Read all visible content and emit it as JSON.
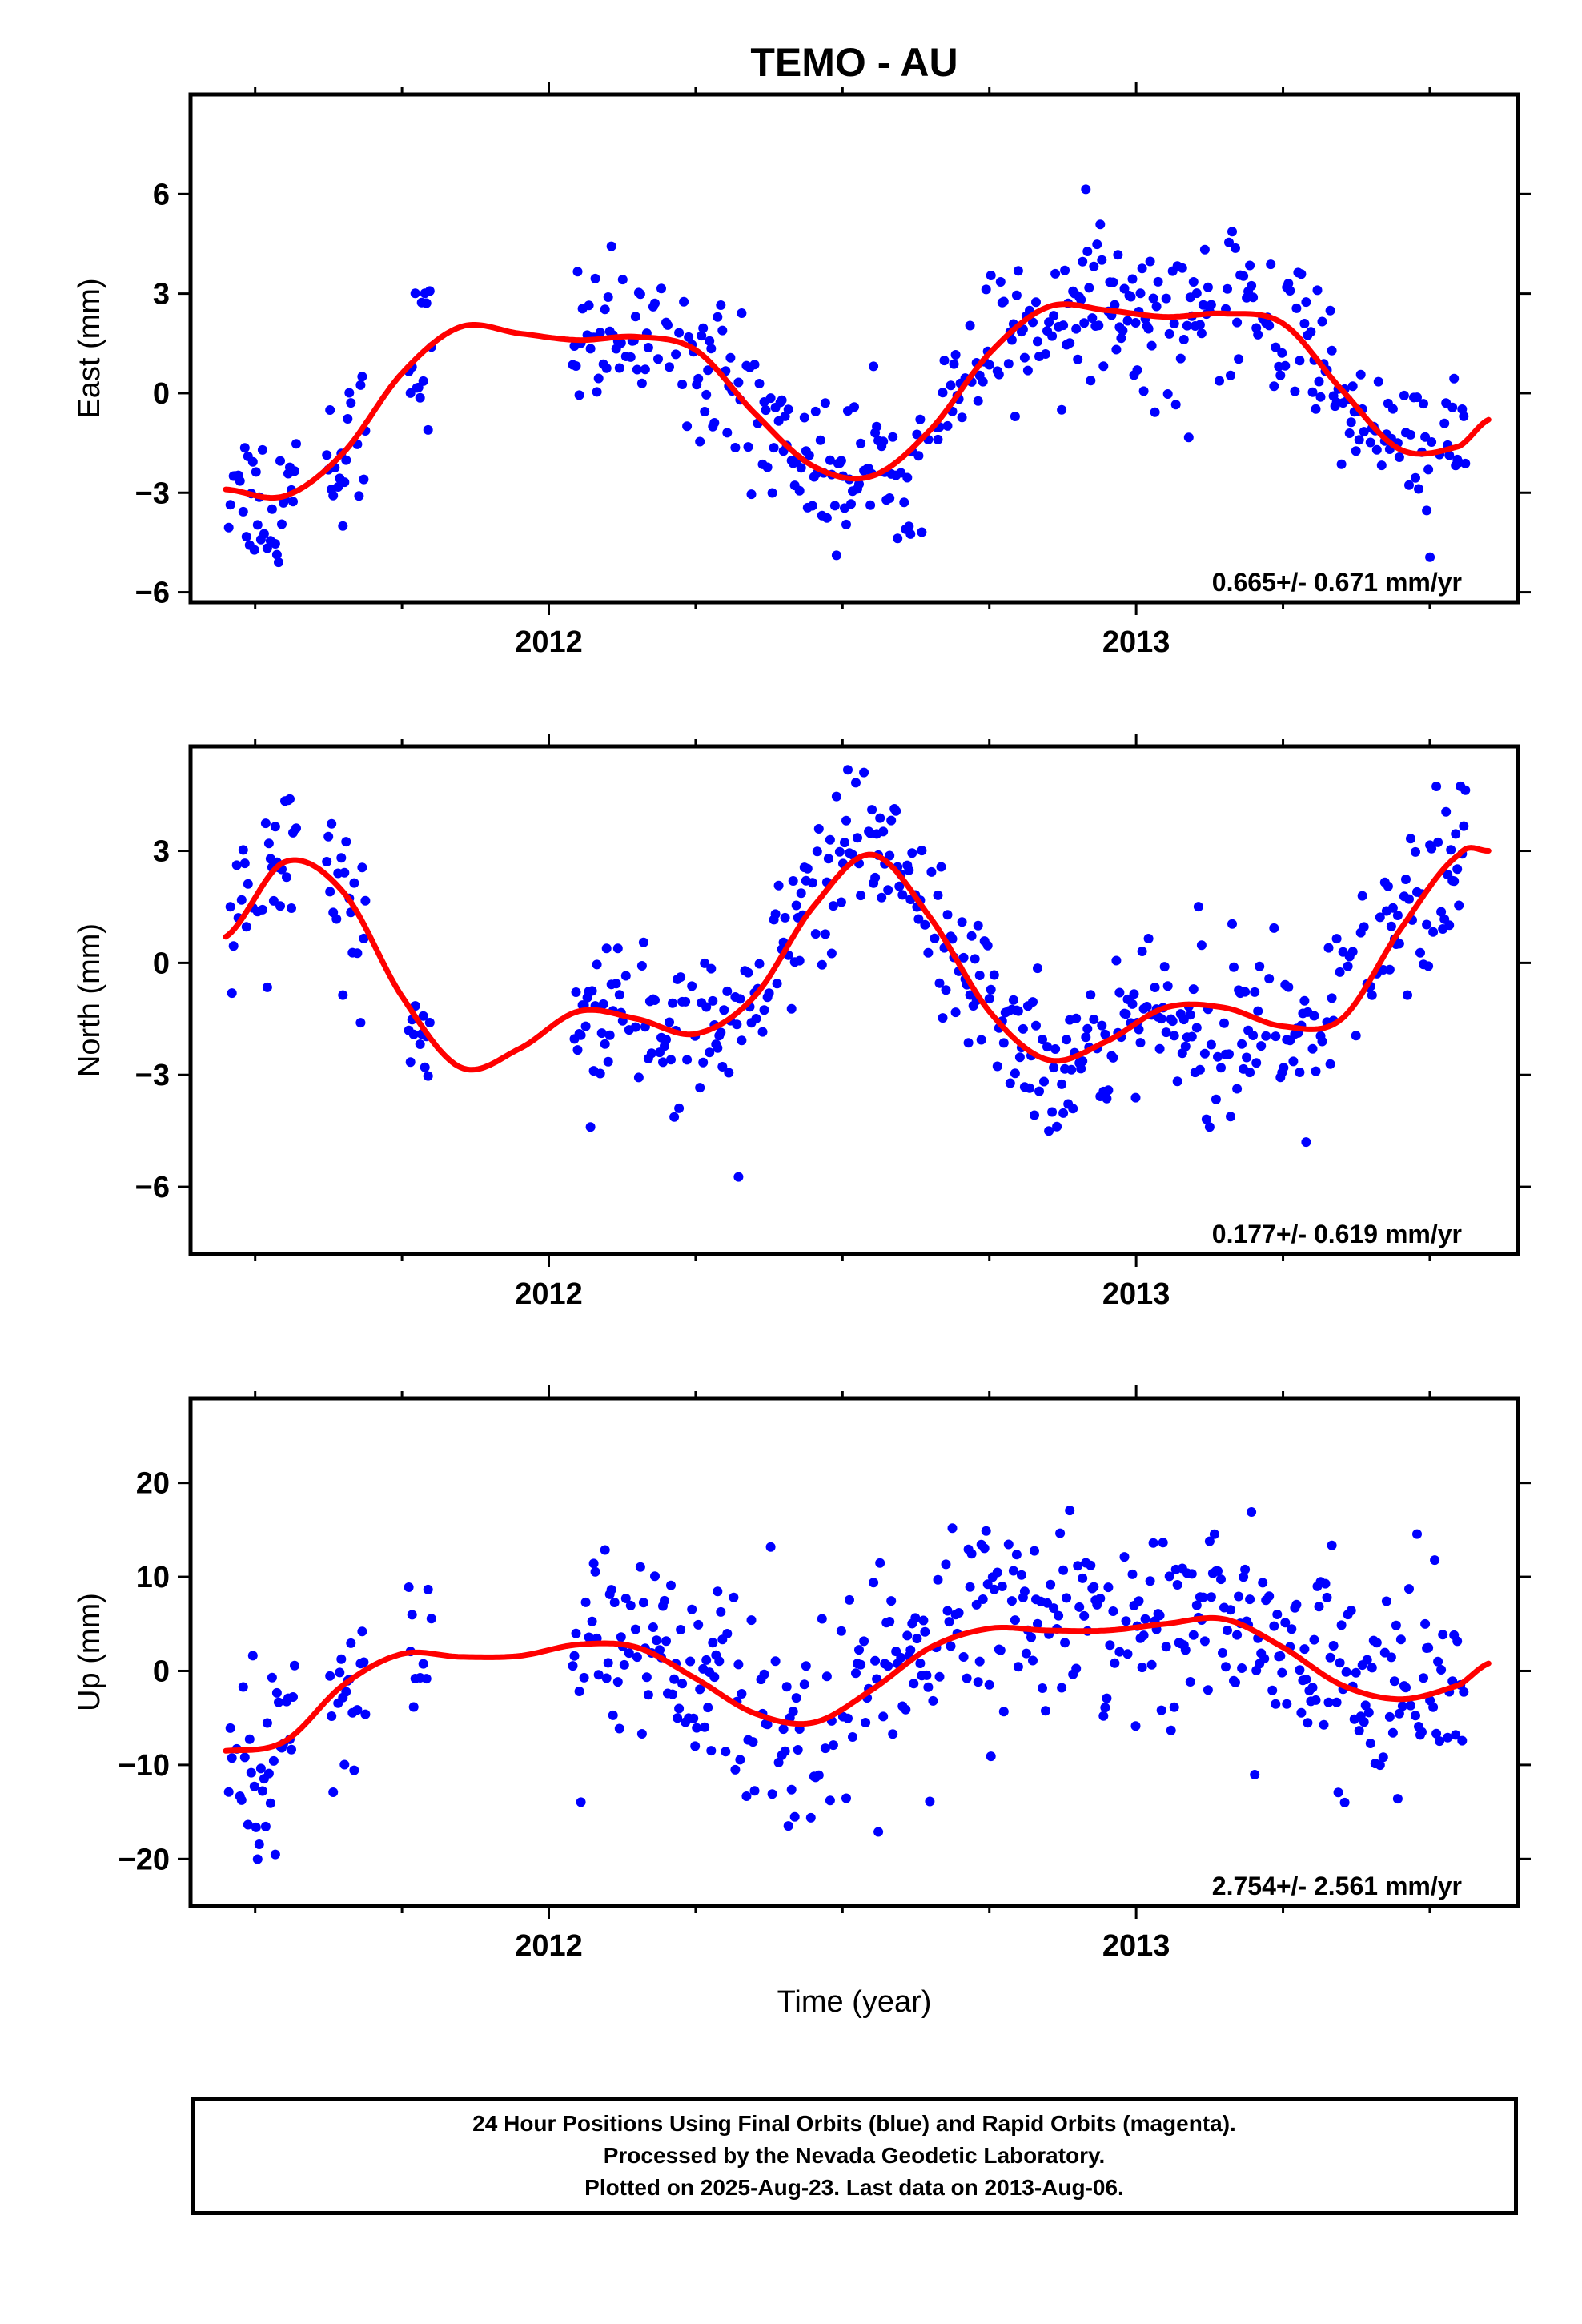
{
  "title": "TEMO - AU",
  "colors": {
    "points": "#0000ff",
    "fit": "#ff0000",
    "frame": "#000000"
  },
  "footer": {
    "line1": "24 Hour Positions Using Final Orbits (blue) and Rapid Orbits (magenta).",
    "line2": "Processed by the Nevada Geodetic Laboratory.",
    "line3": "Plotted on 2025-Aug-23. Last data on 2013-Aug-06."
  },
  "chart_data": [
    {
      "type": "scatter",
      "ylabel": "East (mm)",
      "xlabel": "",
      "xlim": [
        2011.39,
        2013.65
      ],
      "ylim": [
        -6.3,
        9.0
      ],
      "xticks": [
        2012,
        2013
      ],
      "yticks": [
        -6,
        -3,
        0,
        3,
        6
      ],
      "rate_label": "0.665+/- 0.671 mm/yr",
      "fit": {
        "x": [
          2011.45,
          2011.55,
          2011.65,
          2011.75,
          2011.85,
          2011.95,
          2012.05,
          2012.15,
          2012.25,
          2012.35,
          2012.45,
          2012.55,
          2012.65,
          2012.75,
          2012.85,
          2012.95,
          2013.05,
          2013.15,
          2013.25,
          2013.35,
          2013.45,
          2013.55,
          2013.6
        ],
        "y": [
          -2.9,
          -3.1,
          -1.8,
          0.6,
          2.0,
          1.8,
          1.6,
          1.7,
          1.3,
          -0.6,
          -2.2,
          -2.5,
          -1.1,
          1.2,
          2.6,
          2.5,
          2.3,
          2.4,
          2.1,
          0.1,
          -1.7,
          -1.6,
          -0.8
        ]
      },
      "series": [
        {
          "points": []
        }
      ]
    },
    {
      "type": "scatter",
      "ylabel": "North (mm)",
      "xlabel": "",
      "xlim": [
        2011.39,
        2013.65
      ],
      "ylim": [
        -7.8,
        5.8
      ],
      "xticks": [
        2012,
        2013
      ],
      "yticks": [
        -6,
        -3,
        0,
        3
      ],
      "rate_label": "0.177+/- 0.619 mm/yr",
      "fit": {
        "x": [
          2011.45,
          2011.55,
          2011.65,
          2011.75,
          2011.85,
          2011.95,
          2012.05,
          2012.15,
          2012.25,
          2012.35,
          2012.45,
          2012.55,
          2012.65,
          2012.75,
          2012.85,
          2012.95,
          2013.05,
          2013.15,
          2013.25,
          2013.35,
          2013.45,
          2013.55,
          2013.6
        ],
        "y": [
          0.7,
          2.7,
          1.9,
          -0.9,
          -2.8,
          -2.3,
          -1.3,
          -1.5,
          -1.9,
          -0.9,
          1.5,
          2.9,
          1.2,
          -1.3,
          -2.6,
          -2.1,
          -1.2,
          -1.2,
          -1.7,
          -1.5,
          0.9,
          2.9,
          3.0
        ]
      },
      "series": [
        {
          "points": []
        }
      ]
    },
    {
      "type": "scatter",
      "ylabel": "Up (mm)",
      "xlabel": "Time (year)",
      "xlim": [
        2011.39,
        2013.65
      ],
      "ylim": [
        -25,
        29
      ],
      "xticks": [
        2012,
        2013
      ],
      "yticks": [
        -20,
        -10,
        0,
        10,
        20
      ],
      "rate_label": "2.754+/- 2.561 mm/yr",
      "fit": {
        "x": [
          2011.45,
          2011.55,
          2011.65,
          2011.75,
          2011.85,
          2011.95,
          2012.05,
          2012.15,
          2012.25,
          2012.35,
          2012.45,
          2012.55,
          2012.65,
          2012.75,
          2012.85,
          2012.95,
          2013.05,
          2013.15,
          2013.25,
          2013.35,
          2013.45,
          2013.55,
          2013.6
        ],
        "y": [
          -8.5,
          -7.5,
          -1.5,
          1.8,
          1.5,
          1.6,
          2.8,
          2.5,
          -0.8,
          -4.5,
          -5.5,
          -2.0,
          2.5,
          4.5,
          4.3,
          4.3,
          5.0,
          5.5,
          2.5,
          -1.5,
          -3.0,
          -1.5,
          0.8
        ]
      },
      "series": [
        {
          "points": []
        }
      ]
    }
  ]
}
